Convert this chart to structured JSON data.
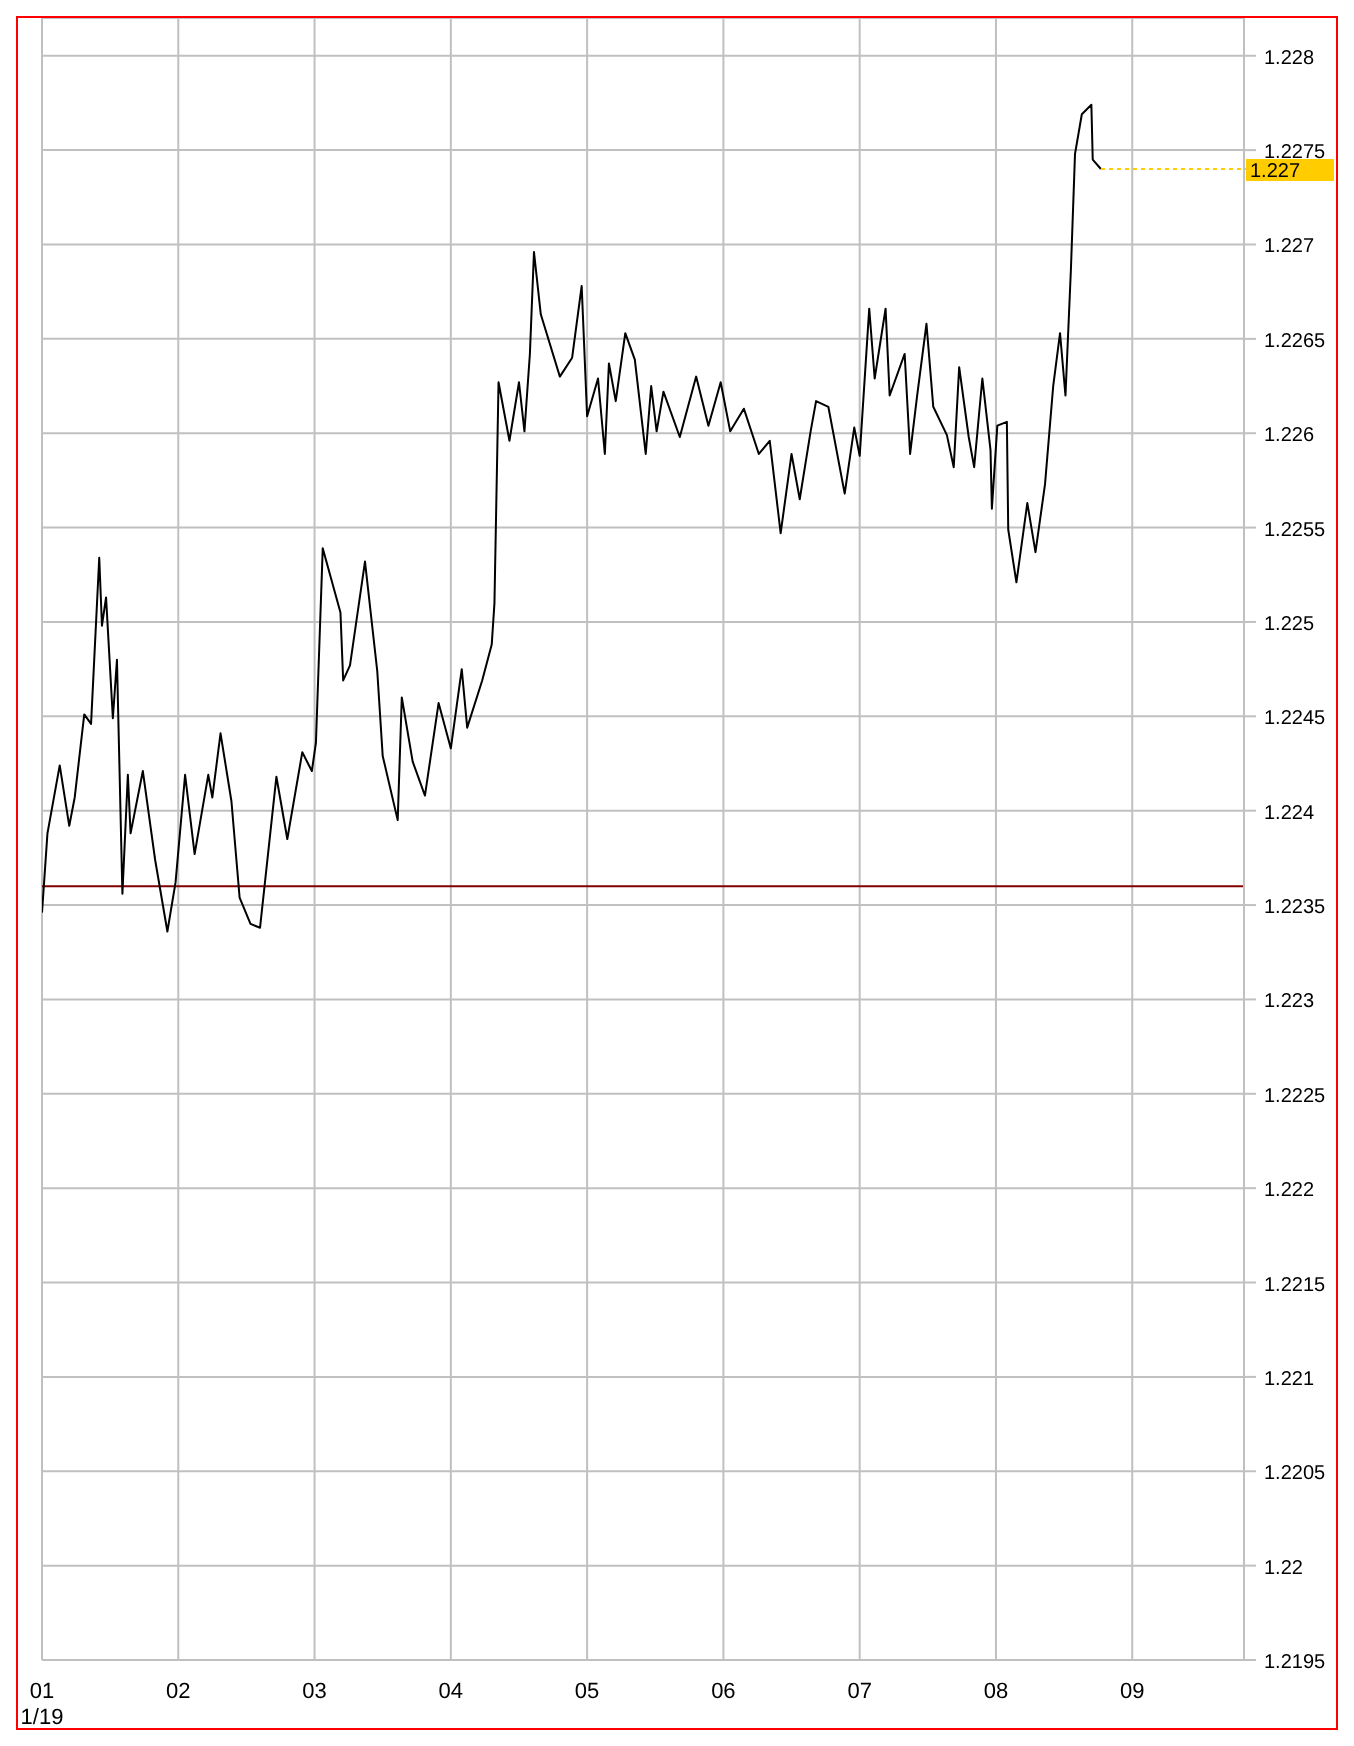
{
  "chart_data": {
    "type": "line",
    "x": [
      1.0,
      1.04,
      1.13,
      1.2,
      1.24,
      1.31,
      1.36,
      1.42,
      1.44,
      1.47,
      1.52,
      1.55,
      1.59,
      1.63,
      1.65,
      1.74,
      1.83,
      1.92,
      1.98,
      2.05,
      2.12,
      2.22,
      2.25,
      2.31,
      2.39,
      2.45,
      2.53,
      2.6,
      2.72,
      2.8,
      2.91,
      2.98,
      3.01,
      3.06,
      3.19,
      3.21,
      3.26,
      3.37,
      3.46,
      3.5,
      3.61,
      3.64,
      3.72,
      3.81,
      3.91,
      4.0,
      4.08,
      4.12,
      4.23,
      4.3,
      4.32,
      4.34,
      4.35,
      4.43,
      4.5,
      4.54,
      4.58,
      4.61,
      4.66,
      4.8,
      4.89,
      4.96,
      5.0,
      5.08,
      5.13,
      5.16,
      5.21,
      5.28,
      5.35,
      5.43,
      5.47,
      5.51,
      5.56,
      5.68,
      5.8,
      5.89,
      5.98,
      6.05,
      6.15,
      6.26,
      6.34,
      6.42,
      6.5,
      6.56,
      6.64,
      6.68,
      6.77,
      6.89,
      6.96,
      7.0,
      7.07,
      7.11,
      7.19,
      7.22,
      7.33,
      7.37,
      7.42,
      7.49,
      7.54,
      7.64,
      7.69,
      7.73,
      7.8,
      7.84,
      7.9,
      7.96,
      7.97,
      8.01,
      8.08,
      8.09,
      8.15,
      8.23,
      8.29,
      8.36,
      8.42,
      8.47,
      8.51,
      8.55,
      8.58,
      8.63,
      8.7,
      8.71,
      8.77
    ],
    "series": [
      {
        "color": "#000000",
        "values": [
          1.22346,
          1.22388,
          1.22424,
          1.22392,
          1.22407,
          1.22451,
          1.22446,
          1.22534,
          1.22498,
          1.22513,
          1.22449,
          1.2248,
          1.22356,
          1.22419,
          1.22388,
          1.22421,
          1.22374,
          1.22336,
          1.22362,
          1.22419,
          1.22377,
          1.22419,
          1.22407,
          1.22441,
          1.22405,
          1.22354,
          1.2234,
          1.22338,
          1.22418,
          1.22385,
          1.22431,
          1.22421,
          1.22436,
          1.22539,
          1.22505,
          1.22469,
          1.22477,
          1.22532,
          1.22474,
          1.22429,
          1.22395,
          1.2246,
          1.22426,
          1.22408,
          1.22457,
          1.22433,
          1.22475,
          1.22444,
          1.22469,
          1.22488,
          1.2251,
          1.22588,
          1.22627,
          1.22596,
          1.22627,
          1.22601,
          1.22642,
          1.22696,
          1.22663,
          1.2263,
          1.2264,
          1.22678,
          1.22609,
          1.22629,
          1.22589,
          1.22637,
          1.22617,
          1.22653,
          1.22639,
          1.22589,
          1.22625,
          1.22601,
          1.22622,
          1.22598,
          1.2263,
          1.22604,
          1.22627,
          1.22601,
          1.22613,
          1.22589,
          1.22596,
          1.22547,
          1.22589,
          1.22565,
          1.22601,
          1.22617,
          1.22614,
          1.22568,
          1.22603,
          1.22588,
          1.22666,
          1.22629,
          1.22666,
          1.2262,
          1.22642,
          1.22589,
          1.22619,
          1.22658,
          1.22614,
          1.22599,
          1.22582,
          1.22635,
          1.22598,
          1.22582,
          1.22629,
          1.22591,
          1.2256,
          1.22604,
          1.22606,
          1.22549,
          1.22521,
          1.22563,
          1.22537,
          1.22573,
          1.22625,
          1.22653,
          1.2262,
          1.22687,
          1.22748,
          1.22769,
          1.22774,
          1.22745,
          1.2274
        ]
      }
    ],
    "xlim": [
      1,
      9.82
    ],
    "xticks": [
      {
        "value": 1,
        "label": "01"
      },
      {
        "value": 2,
        "label": "02"
      },
      {
        "value": 3,
        "label": "03"
      },
      {
        "value": 4,
        "label": "04"
      },
      {
        "value": 5,
        "label": "05"
      },
      {
        "value": 6,
        "label": "06"
      },
      {
        "value": 7,
        "label": "07"
      },
      {
        "value": 8,
        "label": "08"
      },
      {
        "value": 9,
        "label": "09"
      }
    ],
    "ylim": [
      1.2195,
      1.2282
    ],
    "yticks": [
      1.2195,
      1.22,
      1.2205,
      1.221,
      1.2215,
      1.222,
      1.2225,
      1.223,
      1.2235,
      1.224,
      1.2245,
      1.225,
      1.2255,
      1.226,
      1.2265,
      1.227,
      1.2275,
      1.228
    ],
    "ref_lines": [
      {
        "axis": "y",
        "value": 1.2236,
        "color": "#800000"
      }
    ],
    "annotations": [
      "1/19",
      {
        "text": "1.227",
        "x": 8.77,
        "y": 1.2274
      }
    ],
    "grid": true,
    "legend": false,
    "marker": "none",
    "line_style": "solid"
  }
}
